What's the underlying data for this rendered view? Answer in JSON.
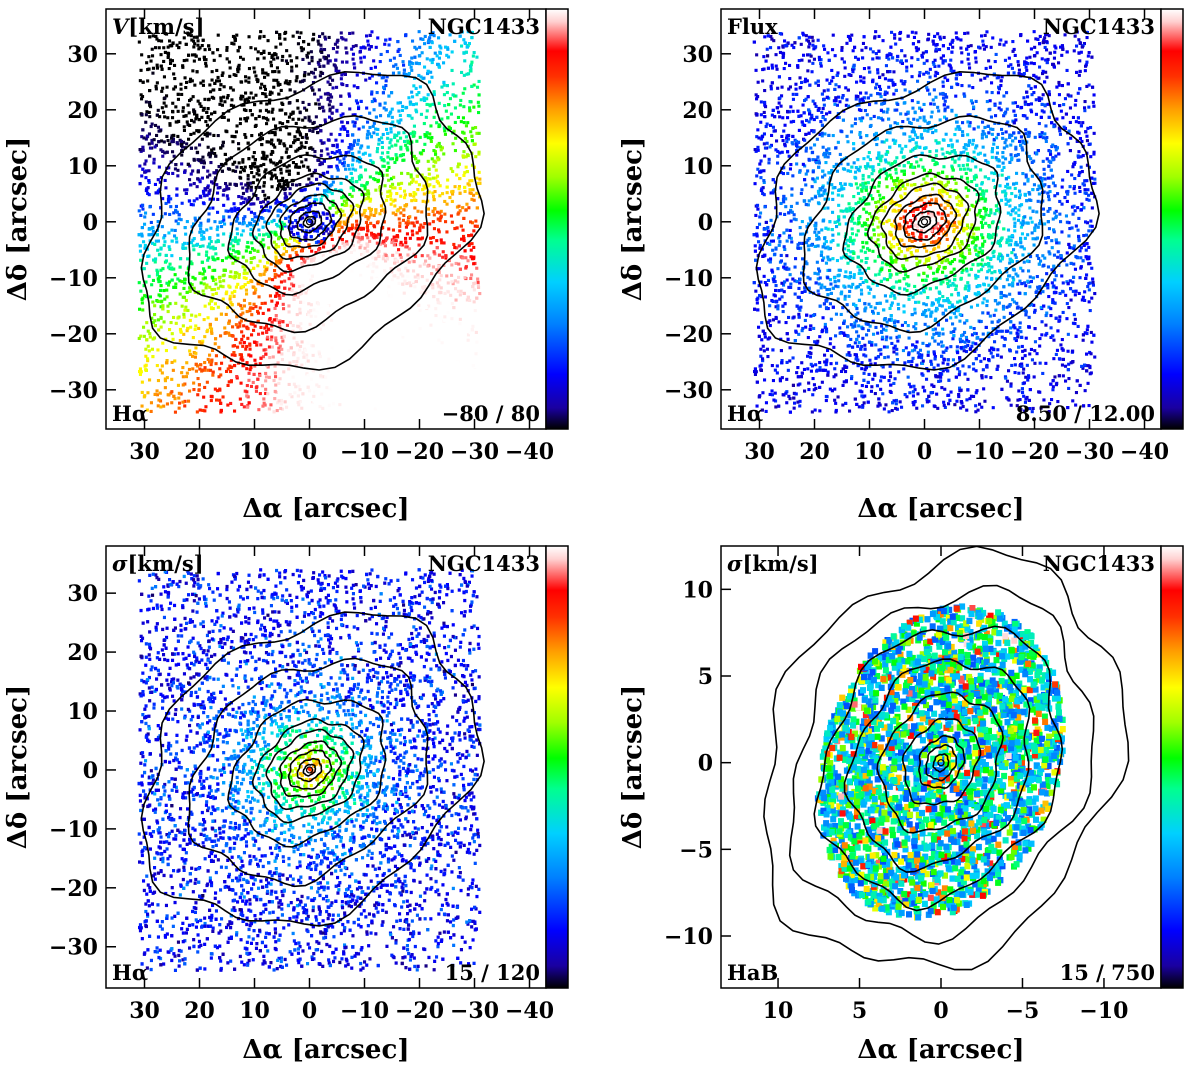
{
  "figure": {
    "object": "NGC1433",
    "greek": {
      "alpha": "α",
      "delta": "δ",
      "Delta": "Δ"
    }
  },
  "chart_data": [
    {
      "type": "heatmap",
      "id": "vel",
      "map_kind": "velocity",
      "title_left": "V [km/s]",
      "title_left_prefix": "V",
      "title_left_unit": "[km/s]",
      "title_right": "NGC1433",
      "line_label": "Hα",
      "range_label": "−80 / 80",
      "vmin": -80,
      "vmax": 80,
      "xlabel": "Δα [arcsec]",
      "ylabel": "Δδ [arcsec]",
      "xlim": [
        37,
        -43
      ],
      "ylim": [
        -37,
        38
      ],
      "xticks": [
        30,
        20,
        10,
        0,
        -10,
        -20,
        -30,
        -40
      ],
      "xtick_labels": [
        "30",
        "20",
        "10",
        "0",
        "−10",
        "−20",
        "−30",
        "−40"
      ],
      "yticks": [
        -30,
        -20,
        -10,
        0,
        10,
        20,
        30
      ],
      "ytick_labels": [
        "−30",
        "−20",
        "−10",
        "0",
        "10",
        "20",
        "30"
      ],
      "colormap": [
        "#000000",
        "#1a00a0",
        "#0000ff",
        "#0080ff",
        "#00d0ff",
        "#00ff90",
        "#00ff00",
        "#a0ff00",
        "#ffff00",
        "#ffa000",
        "#ff3000",
        "#ff0000",
        "#ffd0d0",
        "#ffffff"
      ],
      "contour_levels_arcsec": [
        1,
        2,
        3.5,
        5,
        7,
        9,
        13,
        20,
        28
      ]
    },
    {
      "type": "heatmap",
      "id": "flux",
      "map_kind": "flux",
      "title_left": "Flux",
      "title_right": "NGC1433",
      "line_label": "Hα",
      "range_label": "8.50 / 12.00",
      "vmin": 8.5,
      "vmax": 12.0,
      "xlabel": "Δα [arcsec]",
      "ylabel": "Δδ [arcsec]",
      "xlim": [
        37,
        -43
      ],
      "ylim": [
        -37,
        38
      ],
      "xticks": [
        30,
        20,
        10,
        0,
        -10,
        -20,
        -30,
        -40
      ],
      "xtick_labels": [
        "30",
        "20",
        "10",
        "0",
        "−10",
        "−20",
        "−30",
        "−40"
      ],
      "yticks": [
        -30,
        -20,
        -10,
        0,
        10,
        20,
        30
      ],
      "ytick_labels": [
        "−30",
        "−20",
        "−10",
        "0",
        "10",
        "20",
        "30"
      ],
      "contour_levels_arcsec": [
        1,
        2,
        3.5,
        5,
        7,
        9,
        13,
        20,
        28
      ]
    },
    {
      "type": "heatmap",
      "id": "sig",
      "map_kind": "dispersion",
      "title_left": "σ [km/s]",
      "title_left_prefix": "σ",
      "title_left_unit": "[km/s]",
      "title_right": "NGC1433",
      "line_label": "Hα",
      "range_label": "15 / 120",
      "vmin": 15,
      "vmax": 120,
      "xlabel": "Δα [arcsec]",
      "ylabel": "Δδ [arcsec]",
      "xlim": [
        37,
        -43
      ],
      "ylim": [
        -37,
        38
      ],
      "xticks": [
        30,
        20,
        10,
        0,
        -10,
        -20,
        -30,
        -40
      ],
      "xtick_labels": [
        "30",
        "20",
        "10",
        "0",
        "−10",
        "−20",
        "−30",
        "−40"
      ],
      "yticks": [
        -30,
        -20,
        -10,
        0,
        10,
        20,
        30
      ],
      "ytick_labels": [
        "−30",
        "−20",
        "−10",
        "0",
        "10",
        "20",
        "30"
      ],
      "contour_levels_arcsec": [
        1,
        2,
        3.5,
        5,
        7,
        9,
        13,
        20,
        28
      ]
    },
    {
      "type": "heatmap",
      "id": "sigb",
      "map_kind": "dispersion-broad",
      "title_left": "σ [km/s]",
      "title_left_prefix": "σ",
      "title_left_unit": "[km/s]",
      "title_right": "NGC1433",
      "line_label": "HaB",
      "range_label": "15 / 750",
      "vmin": 15,
      "vmax": 750,
      "xlabel": "Δα [arcsec]",
      "ylabel": "Δδ [arcsec]",
      "xlim": [
        13.5,
        -13.5
      ],
      "ylim": [
        -13,
        12.5
      ],
      "xticks": [
        10,
        5,
        0,
        -5,
        -10
      ],
      "xtick_labels": [
        "10",
        "5",
        "0",
        "−5",
        "−10"
      ],
      "yticks": [
        -10,
        -5,
        0,
        5,
        10
      ],
      "ytick_labels": [
        "−10",
        "−5",
        "0",
        "5",
        "10"
      ],
      "contour_levels_arcsec": [
        0.5,
        1,
        1.5,
        2.5,
        4,
        6,
        8,
        10,
        12
      ]
    }
  ]
}
